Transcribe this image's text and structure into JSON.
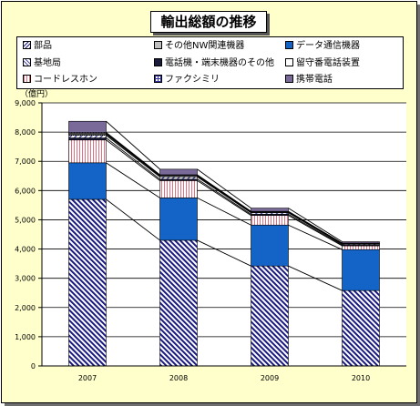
{
  "title": "輸出総額の推移",
  "colors": {
    "frame_bg": "#ffffcc",
    "diagonal_stripe": "#1a1a80",
    "data_comm": "#1464c8",
    "pink_hatch": "#e07080",
    "purple": "#7a6a9a",
    "dark_navy": "#1a1a3a"
  },
  "chart_data": {
    "type": "bar",
    "stacked": true,
    "title": "輸出総額の推移",
    "unit_label": "（億円）",
    "categories": [
      "2007",
      "2008",
      "2009",
      "2010"
    ],
    "ylim": [
      0,
      9000
    ],
    "yticks": [
      "0",
      "1,000",
      "2,000",
      "3,000",
      "4,000",
      "5,000",
      "6,000",
      "7,000",
      "8,000",
      "9,000"
    ],
    "grid": true,
    "legend_position": "top",
    "series": [
      {
        "name": "部品",
        "pattern": "diagonal",
        "color": "#1a1a80",
        "values": [
          5700,
          4300,
          3420,
          2580
        ]
      },
      {
        "name": "データ通信機器",
        "pattern": "solid",
        "color": "#1464c8",
        "values": [
          1250,
          1450,
          1400,
          1400
        ]
      },
      {
        "name": "コードレスホン",
        "pattern": "pink-hatch",
        "color": "#e07080",
        "values": [
          780,
          590,
          330,
          130
        ]
      },
      {
        "name": "電話機・端末機器のその他",
        "pattern": "solid",
        "color": "#1a1a3a",
        "values": [
          70,
          50,
          40,
          30
        ]
      },
      {
        "name": "基地局",
        "pattern": "diagonal-light",
        "color": "#5050a0",
        "values": [
          90,
          80,
          50,
          30
        ]
      },
      {
        "name": "その他NW関連機器",
        "pattern": "dots",
        "color": "#000000",
        "values": [
          40,
          30,
          20,
          15
        ]
      },
      {
        "name": "留守番電話装置",
        "pattern": "white",
        "color": "#000000",
        "values": [
          30,
          20,
          15,
          10
        ]
      },
      {
        "name": "ファクシミリ",
        "pattern": "grid",
        "color": "#3030a0",
        "values": [
          30,
          20,
          15,
          10
        ]
      },
      {
        "name": "携帯電話",
        "pattern": "solid",
        "color": "#7a6a9a",
        "values": [
          380,
          190,
          110,
          45
        ]
      }
    ],
    "legend": [
      {
        "label": "部品",
        "pattern": "diagonal"
      },
      {
        "label": "その他NW関連機器",
        "pattern": "dots"
      },
      {
        "label": "データ通信機器",
        "pattern": "solid-blue"
      },
      {
        "label": "基地局",
        "pattern": "diagonal-light"
      },
      {
        "label": "電話機・端末機器のその他",
        "pattern": "solid-dark"
      },
      {
        "label": "留守番電話装置",
        "pattern": "white"
      },
      {
        "label": "コードレスホン",
        "pattern": "pink-hatch"
      },
      {
        "label": "ファクシミリ",
        "pattern": "grid"
      },
      {
        "label": "携帯電話",
        "pattern": "solid-purple"
      }
    ]
  }
}
